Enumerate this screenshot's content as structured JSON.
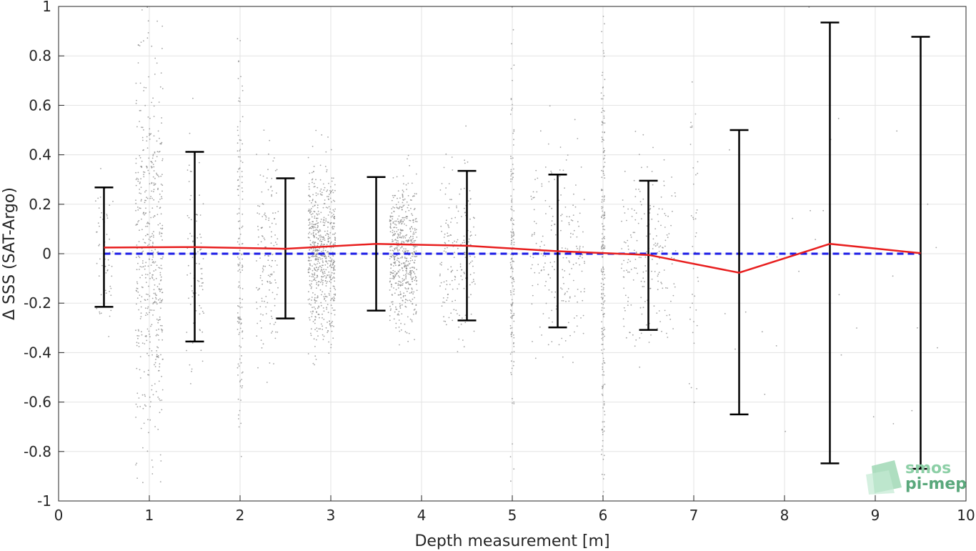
{
  "chart_data": {
    "type": "scatter",
    "xlabel": "Depth measurement [m]",
    "ylabel": "Δ SSS (SAT-Argo)",
    "xlim": [
      0,
      10
    ],
    "ylim": [
      -1,
      1
    ],
    "xticks": [
      0,
      1,
      2,
      3,
      4,
      5,
      6,
      7,
      8,
      9,
      10
    ],
    "yticks": [
      1,
      0.8,
      0.6,
      0.4,
      0.2,
      0,
      -0.2,
      -0.4,
      -0.6,
      -0.8,
      -1
    ],
    "xtick_labels": [
      "0",
      "1",
      "2",
      "3",
      "4",
      "5",
      "6",
      "7",
      "8",
      "9",
      "10"
    ],
    "ytick_labels": [
      "1",
      "0.8",
      "0.6",
      "0.4",
      "0.2",
      "0",
      "-0.2",
      "-0.4",
      "-0.6",
      "-0.8",
      "-1"
    ],
    "grid": true,
    "series": [
      {
        "kind": "scatter",
        "color": "#8c8c8c",
        "clusters": [
          {
            "x": 0.5,
            "spread_x": 0.1,
            "sd_y": 0.15,
            "n": 60
          },
          {
            "x": 1.0,
            "spread_x": 0.15,
            "sd_y": 0.4,
            "n": 500
          },
          {
            "x": 1.5,
            "spread_x": 0.1,
            "sd_y": 0.25,
            "n": 90
          },
          {
            "x": 2.0,
            "spread_x": 0.03,
            "sd_y": 0.35,
            "n": 140
          },
          {
            "x": 2.3,
            "spread_x": 0.12,
            "sd_y": 0.22,
            "n": 150
          },
          {
            "x": 2.9,
            "spread_x": 0.15,
            "sd_y": 0.17,
            "n": 650
          },
          {
            "x": 3.8,
            "spread_x": 0.15,
            "sd_y": 0.14,
            "n": 550
          },
          {
            "x": 4.4,
            "spread_x": 0.2,
            "sd_y": 0.18,
            "n": 180
          },
          {
            "x": 5.0,
            "spread_x": 0.02,
            "sd_y": 0.4,
            "n": 150
          },
          {
            "x": 5.5,
            "spread_x": 0.3,
            "sd_y": 0.2,
            "n": 200
          },
          {
            "x": 6.0,
            "spread_x": 0.02,
            "sd_y": 0.45,
            "n": 220
          },
          {
            "x": 6.5,
            "spread_x": 0.3,
            "sd_y": 0.2,
            "n": 200
          },
          {
            "x": 7.0,
            "spread_x": 0.05,
            "sd_y": 0.3,
            "n": 40
          },
          {
            "x": 8.5,
            "spread_x": 1.2,
            "sd_y": 0.5,
            "n": 30
          }
        ]
      },
      {
        "kind": "line",
        "color": "#e81f1f",
        "x": [
          0.5,
          1.5,
          2.5,
          3.5,
          4.5,
          5.5,
          6.5,
          7.5,
          8.5,
          9.5
        ],
        "y": [
          0.025,
          0.027,
          0.02,
          0.04,
          0.032,
          0.01,
          -0.005,
          -0.077,
          0.04,
          0.002
        ]
      },
      {
        "kind": "errorbar",
        "color": "#000000",
        "x": [
          0.5,
          1.5,
          2.5,
          3.5,
          4.5,
          5.5,
          6.5,
          7.5,
          8.5,
          9.5
        ],
        "lower": [
          -0.215,
          -0.355,
          -0.262,
          -0.23,
          -0.27,
          -0.298,
          -0.308,
          -0.65,
          -0.848,
          -0.87
        ],
        "upper": [
          0.268,
          0.412,
          0.305,
          0.31,
          0.335,
          0.32,
          0.295,
          0.5,
          0.935,
          0.877
        ]
      },
      {
        "kind": "reference-line",
        "color": "#1a1ae6",
        "style": "dashed",
        "x": [
          0.5,
          9.5
        ],
        "y": [
          0,
          0
        ]
      }
    ]
  },
  "logo": {
    "line1": "smos",
    "line2": "pi-mep",
    "color1": "#8ccfa6",
    "color2": "#5aa87c"
  }
}
